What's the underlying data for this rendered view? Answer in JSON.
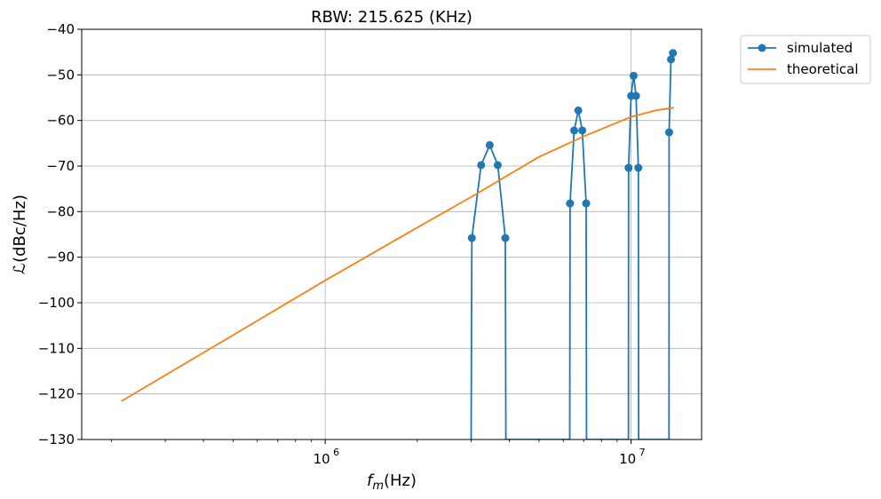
{
  "chart_data": {
    "type": "line",
    "title": "RBW: 215.625 (KHz)",
    "xlabel": "f_m(Hz)",
    "ylabel": "ℒ(dBc/Hz)",
    "xscale": "log",
    "xlim": [
      160000,
      17000000
    ],
    "ylim": [
      -130,
      -40
    ],
    "x_ticks": [
      1000000,
      10000000
    ],
    "x_tick_labels": [
      {
        "base": "10",
        "exp": "6"
      },
      {
        "base": "10",
        "exp": "7"
      }
    ],
    "y_ticks": [
      -130,
      -120,
      -110,
      -100,
      -90,
      -80,
      -70,
      -60,
      -50,
      -40
    ],
    "y_tick_labels": [
      "−130",
      "−120",
      "−110",
      "−100",
      "−90",
      "−80",
      "−70",
      "−60",
      "−50",
      "−40"
    ],
    "grid": true,
    "legend_position": "outside-top-right",
    "series": [
      {
        "name": "simulated",
        "color": "#1f77b4",
        "marker": "circle",
        "x": [
          3000000,
          3016000,
          3234000,
          3450000,
          3665000,
          3880000,
          3897000,
          6300000,
          6315000,
          6515000,
          6720000,
          6925000,
          7130000,
          7150000,
          9800000,
          9812000,
          10000000,
          10190000,
          10380000,
          10560000,
          10580000,
          13300000,
          13315000,
          13500000,
          13700000
        ],
        "y": [
          -130,
          -85.8,
          -69.8,
          -65.4,
          -69.8,
          -85.8,
          -130,
          -130,
          -78.2,
          -62.2,
          -57.8,
          -62.2,
          -78.2,
          -130,
          -130,
          -70.4,
          -54.6,
          -50.2,
          -54.6,
          -70.4,
          -130,
          -130,
          -62.6,
          -46.6,
          -45.2
        ],
        "marker_x": [
          3016000,
          3234000,
          3450000,
          3665000,
          3880000,
          6315000,
          6515000,
          6720000,
          6925000,
          7130000,
          9812000,
          10000000,
          10190000,
          10380000,
          10560000,
          13315000,
          13500000,
          13700000
        ],
        "marker_y": [
          -85.8,
          -69.8,
          -65.4,
          -69.8,
          -85.8,
          -78.2,
          -62.2,
          -57.8,
          -62.2,
          -78.2,
          -70.4,
          -54.6,
          -50.2,
          -54.6,
          -70.4,
          -62.6,
          -46.6,
          -45.2
        ]
      },
      {
        "name": "theoretical",
        "color": "#ff7f0e",
        "marker": "none",
        "x": [
          215625,
          300000,
          500000,
          1000000,
          2000000,
          3000000,
          5000000,
          7000000,
          10000000,
          12000000,
          13800000
        ],
        "y": [
          -121.6,
          -115.9,
          -107.1,
          -95.1,
          -83.5,
          -76.8,
          -68.0,
          -63.5,
          -59.2,
          -57.8,
          -57.2
        ]
      }
    ]
  }
}
